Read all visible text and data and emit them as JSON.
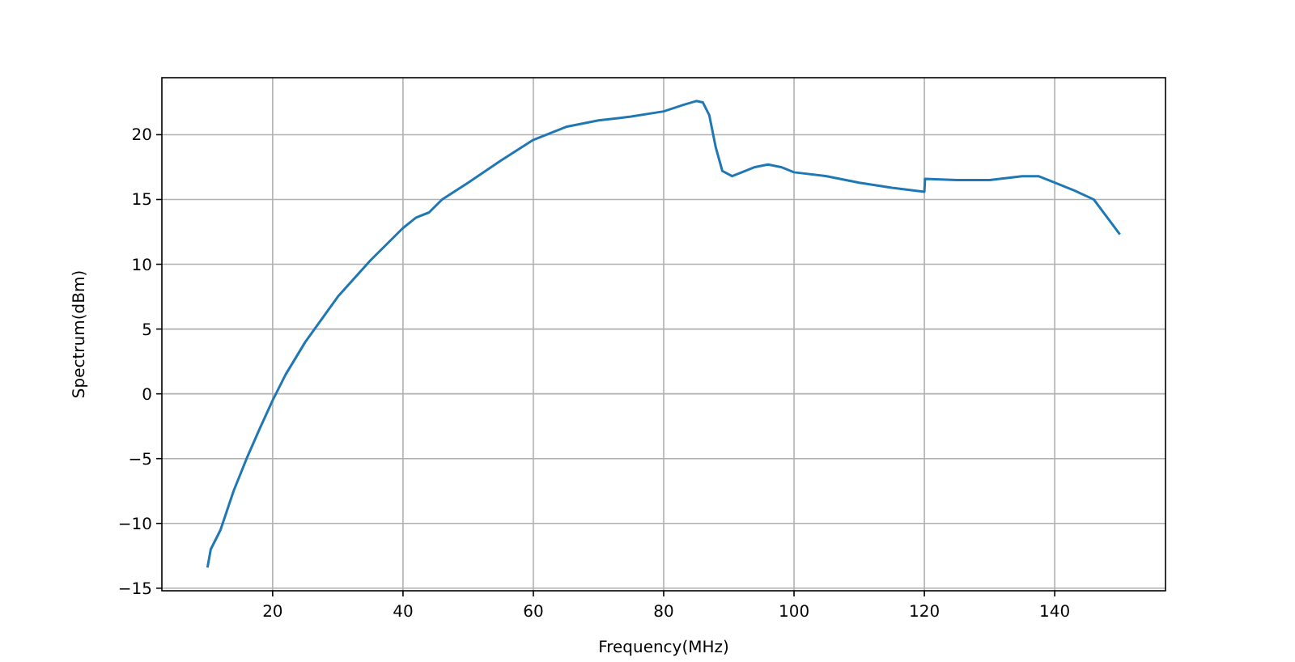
{
  "chart_data": {
    "type": "line",
    "xlabel": "Frequency(MHz)",
    "ylabel": "Spectrum(dBm)",
    "grid": true,
    "xlim": [
      3,
      157
    ],
    "ylim": [
      -15.2,
      24.4
    ],
    "xticks": [
      20,
      40,
      60,
      80,
      100,
      120,
      140
    ],
    "yticks": [
      -15,
      -10,
      -5,
      0,
      5,
      10,
      15,
      20
    ],
    "x": [
      10,
      10.5,
      12,
      14,
      16,
      18,
      20,
      22,
      25,
      30,
      35,
      40,
      42,
      44,
      46,
      50,
      55,
      60,
      65,
      70,
      75,
      80,
      83,
      85,
      86,
      87,
      88,
      89,
      90.5,
      92,
      94,
      96,
      98,
      100,
      105,
      110,
      115,
      120,
      120.1,
      125,
      130,
      135,
      137.5,
      140,
      143,
      146,
      150
    ],
    "series": [
      {
        "color": "#1f77b4",
        "values": [
          -13.4,
          -12,
          -10.5,
          -7.5,
          -5,
          -2.7,
          -0.5,
          1.5,
          4,
          7.5,
          10.3,
          12.8,
          13.6,
          14,
          15,
          16.3,
          18,
          19.6,
          20.6,
          21.1,
          21.4,
          21.8,
          22.3,
          22.6,
          22.5,
          21.5,
          19,
          17.2,
          16.8,
          17.1,
          17.5,
          17.7,
          17.5,
          17.1,
          16.8,
          16.3,
          15.9,
          15.6,
          16.6,
          16.5,
          16.5,
          16.8,
          16.8,
          16.3,
          15.7,
          15,
          12.3
        ]
      }
    ]
  }
}
